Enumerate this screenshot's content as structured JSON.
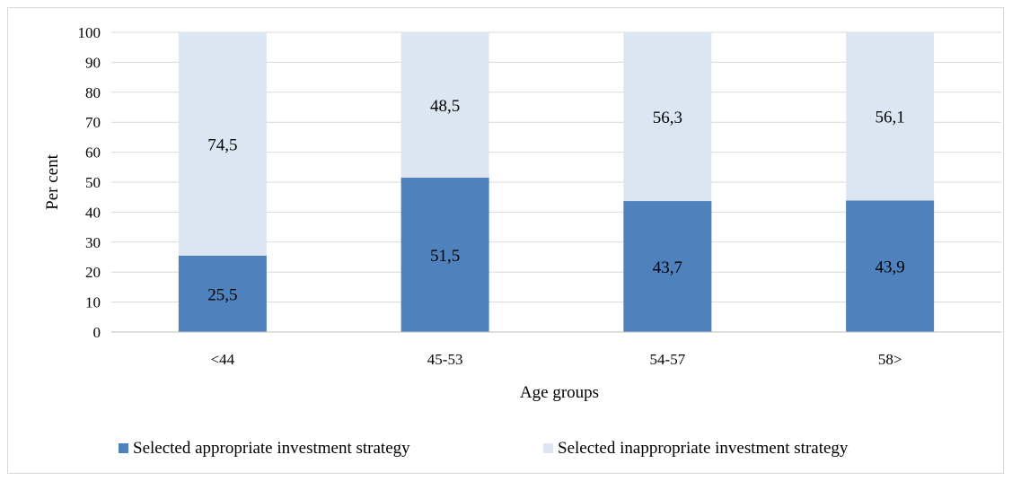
{
  "chart_data": {
    "type": "bar",
    "stacked": true,
    "categories": [
      "<44",
      "45-53",
      "54-57",
      "58>"
    ],
    "series": [
      {
        "name": "Selected appropriate investment strategy",
        "values": [
          25.5,
          51.5,
          43.7,
          43.9
        ],
        "labels": [
          "25,5",
          "51,5",
          "43,7",
          "43,9"
        ],
        "color": "#4f81bd"
      },
      {
        "name": "Selected inappropriate investment strategy",
        "values": [
          74.5,
          48.5,
          56.3,
          56.1
        ],
        "labels": [
          "74,5",
          "48,5",
          "56,3",
          "56,1"
        ],
        "color": "#dce6f2"
      }
    ],
    "title": "",
    "xlabel": "Age groups",
    "ylabel": "Per cent",
    "ylim": [
      0,
      100
    ],
    "yticks": [
      0,
      10,
      20,
      30,
      40,
      50,
      60,
      70,
      80,
      90,
      100
    ],
    "grid": true,
    "legend_position": "bottom"
  }
}
